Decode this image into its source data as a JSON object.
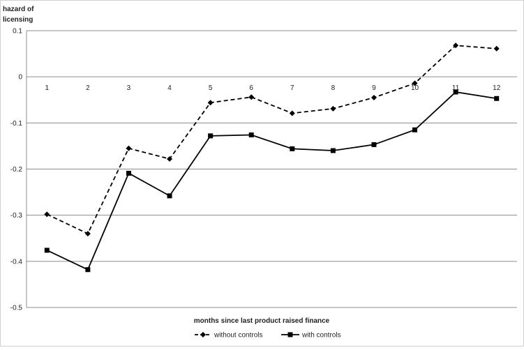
{
  "chart_data": {
    "type": "line",
    "title": "",
    "ylabel_lines": [
      "hazard of",
      "licensing"
    ],
    "xlabel": "months since last product raised finance",
    "categories": [
      "1",
      "2",
      "3",
      "4",
      "5",
      "6",
      "7",
      "8",
      "9",
      "10",
      "11",
      "12"
    ],
    "ylim": [
      -0.5,
      0.1
    ],
    "yticks": [
      0.1,
      0,
      -0.1,
      -0.2,
      -0.3,
      -0.4,
      -0.5
    ],
    "ytick_labels": [
      "0.1",
      "0",
      "-0.1",
      "-0.2",
      "-0.3",
      "-0.4",
      "-0.5"
    ],
    "grid": true,
    "legend_position": "bottom",
    "series": [
      {
        "name": "without controls",
        "style": "dashed",
        "marker": "diamond",
        "color": "#000000",
        "values": [
          -0.298,
          -0.34,
          -0.155,
          -0.178,
          -0.056,
          -0.044,
          -0.079,
          -0.069,
          -0.045,
          -0.014,
          0.068,
          0.061
        ]
      },
      {
        "name": "with controls",
        "style": "solid",
        "marker": "square",
        "color": "#000000",
        "values": [
          -0.376,
          -0.418,
          -0.209,
          -0.258,
          -0.128,
          -0.126,
          -0.156,
          -0.16,
          -0.147,
          -0.115,
          -0.033,
          -0.047
        ]
      }
    ]
  }
}
